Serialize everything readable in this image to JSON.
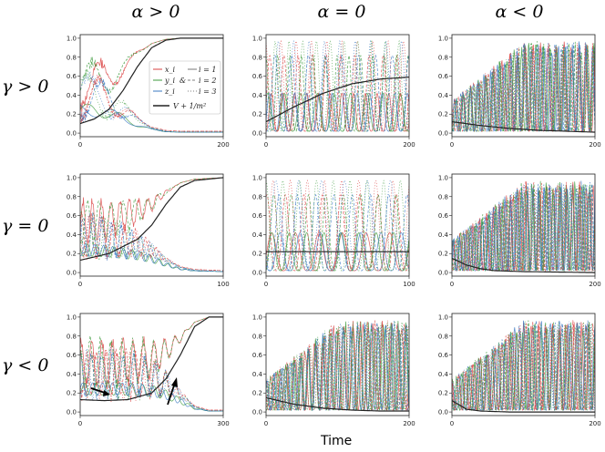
{
  "column_titles": [
    "α > 0",
    "α = 0",
    "α < 0"
  ],
  "row_titles": [
    "γ > 0",
    "γ = 0",
    "γ < 0"
  ],
  "xlabel": "Time",
  "legend": {
    "vars": [
      "x_i",
      "y_i",
      "z_i"
    ],
    "amp": "&",
    "indices": [
      "i = 1",
      "i = 2",
      "i = 3"
    ],
    "curve": "V + 1/m²"
  },
  "colors": {
    "x": "#d94040",
    "y": "#3c9a3c",
    "z": "#3a78c2",
    "V": "#222222"
  },
  "chart_data": [
    {
      "type": "line",
      "row": 0,
      "col": 0,
      "xlim": [
        0,
        200
      ],
      "ylim": [
        0,
        1
      ],
      "xticks": [
        "0",
        "200"
      ],
      "yticks": [
        "0.0",
        "0.2",
        "0.4",
        "0.6",
        "0.8",
        "1.0"
      ],
      "V_curve": {
        "x": [
          0,
          20,
          40,
          60,
          80,
          100,
          120,
          140,
          160,
          200
        ],
        "y": [
          0.1,
          0.15,
          0.25,
          0.45,
          0.7,
          0.9,
          0.98,
          1.0,
          1.0,
          1.0
        ]
      },
      "behavior": "converge",
      "osc_freq": 0.09
    },
    {
      "type": "line",
      "row": 0,
      "col": 1,
      "xlim": [
        0,
        200
      ],
      "ylim": [
        0,
        1
      ],
      "xticks": [
        "0",
        "200"
      ],
      "yticks": [
        "0.0",
        "0.2",
        "0.4",
        "0.6",
        "0.8",
        "1.0"
      ],
      "V_curve": {
        "x": [
          0,
          40,
          80,
          120,
          160,
          200
        ],
        "y": [
          0.12,
          0.28,
          0.42,
          0.52,
          0.57,
          0.59
        ]
      },
      "behavior": "oscillate",
      "osc_freq": 0.25
    },
    {
      "type": "line",
      "row": 0,
      "col": 2,
      "xlim": [
        0,
        200
      ],
      "ylim": [
        0,
        1
      ],
      "xticks": [
        "0",
        "200"
      ],
      "yticks": [
        "0.0",
        "0.2",
        "0.4",
        "0.6",
        "0.8",
        "1.0"
      ],
      "V_curve": {
        "x": [
          0,
          40,
          80,
          120,
          160,
          200
        ],
        "y": [
          0.12,
          0.08,
          0.05,
          0.03,
          0.02,
          0.01
        ]
      },
      "behavior": "grow",
      "osc_freq": 0.4
    },
    {
      "type": "line",
      "row": 1,
      "col": 0,
      "xlim": [
        0,
        100
      ],
      "ylim": [
        0,
        1
      ],
      "xticks": [
        "0",
        "100"
      ],
      "yticks": [
        "0.0",
        "0.2",
        "0.4",
        "0.6",
        "0.8",
        "1.0"
      ],
      "V_curve": {
        "x": [
          0,
          20,
          40,
          50,
          60,
          70,
          80,
          100
        ],
        "y": [
          0.13,
          0.2,
          0.35,
          0.5,
          0.72,
          0.9,
          0.97,
          1.0
        ]
      },
      "behavior": "converge",
      "osc_freq": 0.35
    },
    {
      "type": "line",
      "row": 1,
      "col": 1,
      "xlim": [
        0,
        100
      ],
      "ylim": [
        0,
        1
      ],
      "xticks": [
        "0",
        "100"
      ],
      "yticks": [
        "0.0",
        "0.2",
        "0.4",
        "0.6",
        "0.8",
        "1.0"
      ],
      "V_curve": {
        "x": [
          0,
          100
        ],
        "y": [
          0.22,
          0.22
        ]
      },
      "behavior": "oscillate",
      "osc_freq": 0.18
    },
    {
      "type": "line",
      "row": 1,
      "col": 2,
      "xlim": [
        0,
        200
      ],
      "ylim": [
        0,
        1
      ],
      "xticks": [
        "0",
        "200"
      ],
      "yticks": [
        "0.0",
        "0.2",
        "0.4",
        "0.6",
        "0.8",
        "1.0"
      ],
      "V_curve": {
        "x": [
          0,
          20,
          40,
          60,
          100,
          200
        ],
        "y": [
          0.15,
          0.08,
          0.04,
          0.02,
          0.01,
          0.0
        ]
      },
      "behavior": "grow",
      "osc_freq": 0.45
    },
    {
      "type": "line",
      "row": 2,
      "col": 0,
      "xlim": [
        0,
        300
      ],
      "ylim": [
        0,
        1
      ],
      "xticks": [
        "0",
        "300"
      ],
      "yticks": [
        "0.0",
        "0.2",
        "0.4",
        "0.6",
        "0.8",
        "1.0"
      ],
      "V_curve": {
        "x": [
          0,
          50,
          100,
          150,
          180,
          210,
          240,
          270,
          300
        ],
        "y": [
          0.13,
          0.12,
          0.13,
          0.2,
          0.35,
          0.6,
          0.9,
          1.0,
          1.0
        ]
      },
      "behavior": "converge",
      "osc_freq": 0.3
    },
    {
      "type": "line",
      "row": 2,
      "col": 1,
      "xlim": [
        0,
        200
      ],
      "ylim": [
        0,
        1
      ],
      "xticks": [
        "0",
        "200"
      ],
      "yticks": [
        "0.0",
        "0.2",
        "0.4",
        "0.6",
        "0.8",
        "1.0"
      ],
      "V_curve": {
        "x": [
          0,
          40,
          80,
          120,
          160,
          200
        ],
        "y": [
          0.15,
          0.08,
          0.04,
          0.02,
          0.01,
          0.01
        ]
      },
      "behavior": "grow",
      "osc_freq": 0.35
    },
    {
      "type": "line",
      "row": 2,
      "col": 2,
      "xlim": [
        0,
        200
      ],
      "ylim": [
        0,
        1
      ],
      "xticks": [
        "0",
        "200"
      ],
      "yticks": [
        "0.0",
        "0.2",
        "0.4",
        "0.6",
        "0.8",
        "1.0"
      ],
      "V_curve": {
        "x": [
          0,
          20,
          40,
          80,
          200
        ],
        "y": [
          0.12,
          0.03,
          0.01,
          0.0,
          0.0
        ]
      },
      "behavior": "grow",
      "osc_freq": 0.4
    }
  ]
}
